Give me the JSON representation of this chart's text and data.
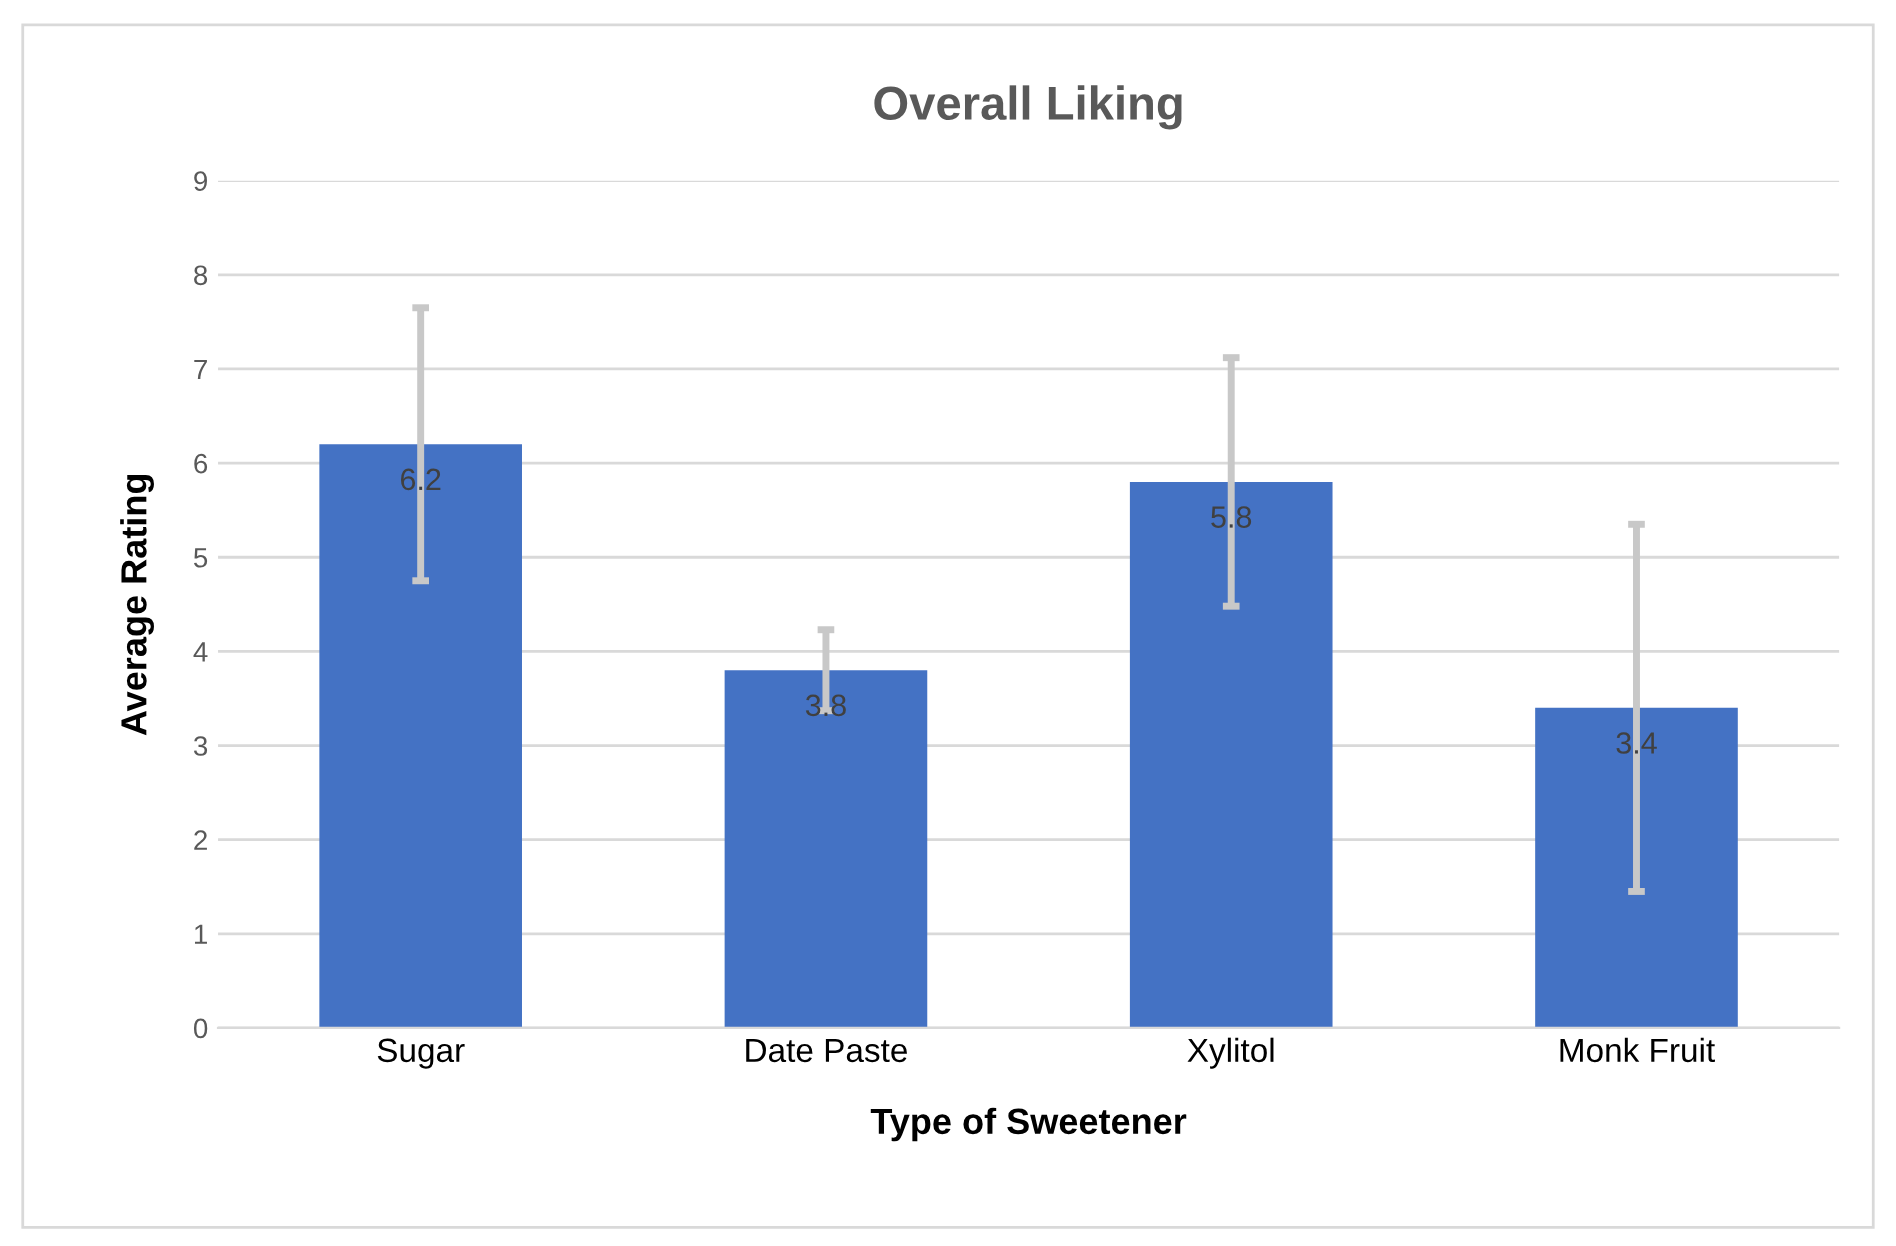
{
  "chart_data": {
    "type": "bar",
    "title": "Overall Liking",
    "xlabel": "Type of Sweetener",
    "ylabel": "Average Rating",
    "categories": [
      "Sugar",
      "Date Paste",
      "Xylitol",
      "Monk Fruit"
    ],
    "values": [
      6.2,
      3.8,
      5.8,
      3.4
    ],
    "errors": [
      1.45,
      0.43,
      1.32,
      1.95
    ],
    "color": "#4472c4",
    "ylim": [
      0,
      9
    ],
    "yticks": [
      0,
      1,
      2,
      3,
      4,
      5,
      6,
      7,
      8,
      9
    ],
    "grid": "y",
    "data_labels": true,
    "legend": false
  }
}
